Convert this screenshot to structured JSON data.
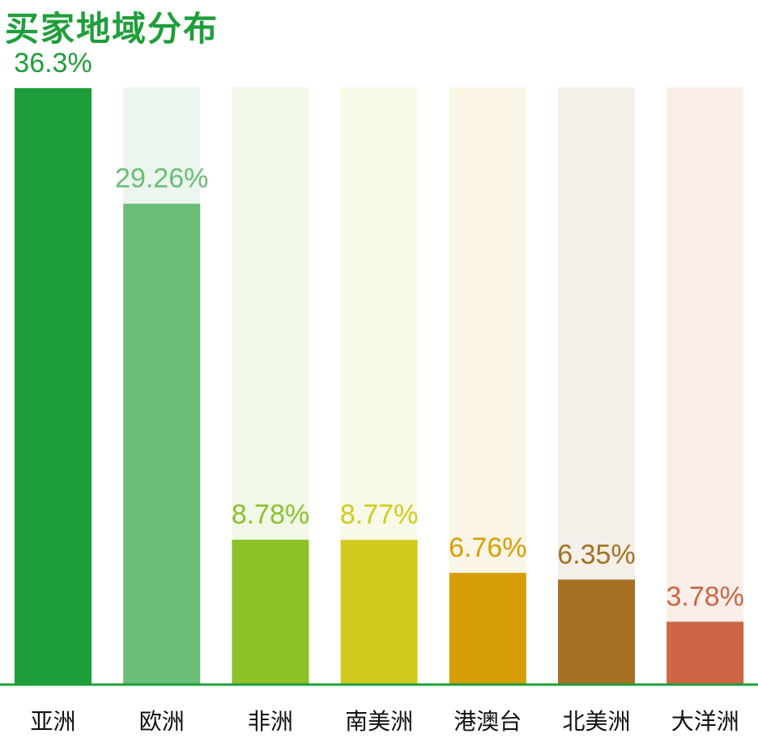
{
  "chart_data": {
    "type": "bar",
    "title": "买家地域分布",
    "categories": [
      "亚洲",
      "欧洲",
      "非洲",
      "南美洲",
      "港澳台",
      "北美洲",
      "大洋洲"
    ],
    "values": [
      36.3,
      29.26,
      8.78,
      8.77,
      6.76,
      6.35,
      3.78
    ],
    "value_labels": [
      "36.3%",
      "29.26%",
      "8.78%",
      "8.77%",
      "6.76%",
      "6.35%",
      "3.78%"
    ],
    "colors": [
      "#1e9e3a",
      "#6bbd78",
      "#8cc128",
      "#d0cb1e",
      "#d89e06",
      "#a47222",
      "#cc6644"
    ],
    "track_colors": [
      "#e8f4ec",
      "#ecf5ee",
      "#f1f8e8",
      "#f8f9e6",
      "#fbf5e5",
      "#f4efe9",
      "#f9eeea"
    ],
    "ylim": [
      0,
      40
    ],
    "axis_color": "#1e9e3a",
    "xlabel": "",
    "ylabel": ""
  }
}
